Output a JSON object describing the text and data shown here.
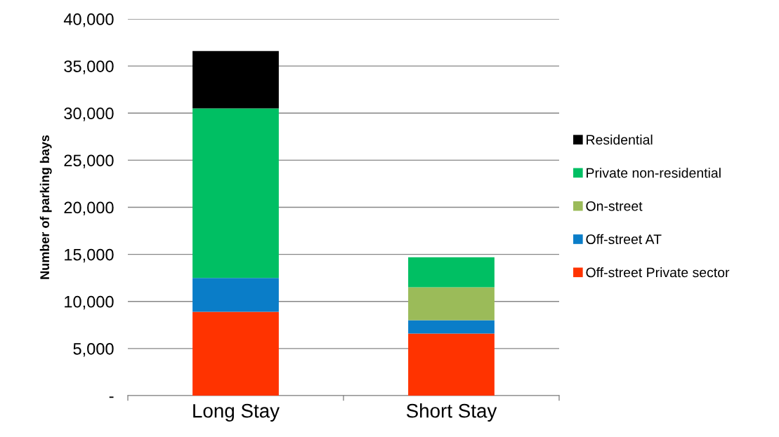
{
  "chart_data": {
    "type": "bar",
    "stacked": true,
    "ylabel": "Number of parking bays",
    "categories": [
      "Long Stay",
      "Short Stay"
    ],
    "series": [
      {
        "name": "Off-street Private sector",
        "color": "#ff3300",
        "values": [
          8900,
          6600
        ]
      },
      {
        "name": "Off-street AT",
        "color": "#0a7dc8",
        "values": [
          3600,
          1400
        ]
      },
      {
        "name": "On-street",
        "color": "#9bbb59",
        "values": [
          0,
          3500
        ]
      },
      {
        "name": "Private non-residential",
        "color": "#00bf63",
        "values": [
          18000,
          3200
        ]
      },
      {
        "name": "Residential",
        "color": "#000000",
        "values": [
          6100,
          0
        ]
      }
    ],
    "ylim": [
      0,
      40000
    ],
    "yticks": [
      {
        "value": 0,
        "label": "-"
      },
      {
        "value": 5000,
        "label": "5,000"
      },
      {
        "value": 10000,
        "label": "10,000"
      },
      {
        "value": 15000,
        "label": "15,000"
      },
      {
        "value": 20000,
        "label": "20,000"
      },
      {
        "value": 25000,
        "label": "25,000"
      },
      {
        "value": 30000,
        "label": "30,000"
      },
      {
        "value": 35000,
        "label": "35,000"
      },
      {
        "value": 40000,
        "label": "40,000"
      }
    ],
    "grid": "y",
    "legend": "right"
  }
}
